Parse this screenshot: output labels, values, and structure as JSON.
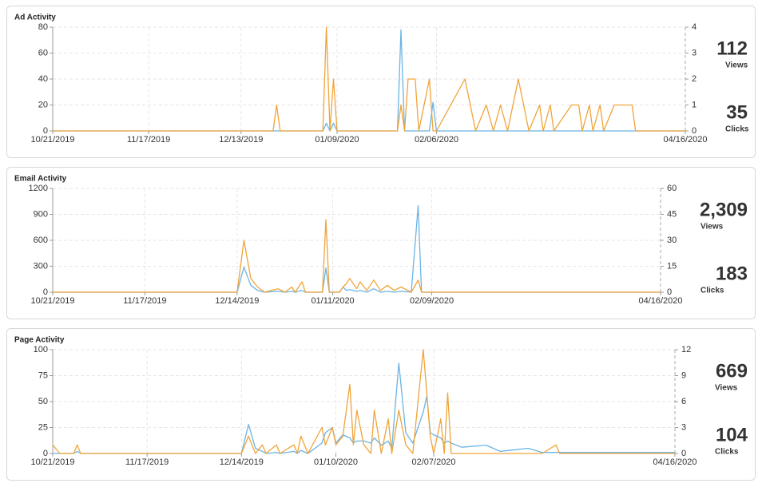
{
  "chart_data": [
    {
      "type": "line",
      "title": "Ad Activity",
      "x": [
        "10/21/2019",
        "12/22/2019",
        "12/23/2019",
        "12/24/2019",
        "01/05/2020",
        "01/06/2020",
        "01/07/2020",
        "01/08/2020",
        "01/09/2020",
        "01/26/2020",
        "01/27/2020",
        "01/28/2020",
        "01/29/2020",
        "01/31/2020",
        "02/01/2020",
        "02/04/2020",
        "02/05/2020",
        "02/06/2020",
        "02/14/2020",
        "02/17/2020",
        "02/20/2020",
        "02/22/2020",
        "02/24/2020",
        "02/26/2020",
        "02/29/2020",
        "03/03/2020",
        "03/06/2020",
        "03/07/2020",
        "03/09/2020",
        "03/10/2020",
        "03/15/2020",
        "03/17/2020",
        "03/18/2020",
        "03/20/2020",
        "03/21/2020",
        "03/23/2020",
        "03/24/2020",
        "03/27/2020",
        "04/01/2020",
        "04/02/2020",
        "04/16/2020"
      ],
      "xlim": [
        "10/21/2019",
        "04/16/2020"
      ],
      "xticks": [
        "10/21/2019",
        "11/17/2019",
        "12/13/2019",
        "01/09/2020",
        "02/06/2020",
        "04/16/2020"
      ],
      "ylim": [
        0,
        80
      ],
      "yticks": [
        0,
        20,
        40,
        60,
        80
      ],
      "y2lim": [
        0,
        4
      ],
      "y2ticks": [
        0,
        1,
        2,
        3,
        4
      ],
      "grid": true,
      "series": [
        {
          "name": "Views",
          "color": "#6cb4e4",
          "total": 112,
          "values": [
            0,
            0,
            0,
            0,
            0,
            6,
            0,
            6,
            0,
            0,
            78,
            0,
            0,
            0,
            0,
            0,
            22,
            0,
            0,
            0,
            0,
            0,
            0,
            0,
            0,
            0,
            0,
            0,
            0,
            0,
            0,
            0,
            0,
            0,
            0,
            0,
            0,
            0,
            0,
            0,
            0
          ]
        },
        {
          "name": "Clicks",
          "color": "#f0a43a",
          "axis": "y2",
          "total": 35,
          "values": [
            0,
            0,
            1,
            0,
            0,
            4,
            0,
            2,
            0,
            0,
            1,
            0,
            2,
            2,
            0,
            2,
            0,
            0,
            2,
            0,
            1,
            0,
            1,
            0,
            2,
            0,
            1,
            0,
            1,
            0,
            1,
            1,
            0,
            1,
            0,
            1,
            0,
            1,
            1,
            0,
            0
          ]
        }
      ]
    },
    {
      "type": "line",
      "title": "Email Activity",
      "x": [
        "10/21/2019",
        "12/14/2019",
        "12/16/2019",
        "12/18/2019",
        "12/20/2019",
        "12/22/2019",
        "12/26/2019",
        "12/28/2019",
        "12/30/2019",
        "12/31/2019",
        "01/02/2020",
        "01/03/2020",
        "01/08/2020",
        "01/09/2020",
        "01/10/2020",
        "01/13/2020",
        "01/14/2020",
        "01/15/2020",
        "01/16/2020",
        "01/18/2020",
        "01/19/2020",
        "01/21/2020",
        "01/23/2020",
        "01/25/2020",
        "01/27/2020",
        "01/29/2020",
        "01/31/2020",
        "02/03/2020",
        "02/05/2020",
        "02/06/2020",
        "04/16/2020"
      ],
      "xlim": [
        "10/21/2019",
        "04/16/2020"
      ],
      "xticks": [
        "10/21/2019",
        "11/17/2019",
        "12/14/2019",
        "01/11/2020",
        "02/09/2020",
        "04/16/2020"
      ],
      "ylim": [
        0,
        1200
      ],
      "yticks": [
        0,
        300,
        600,
        900,
        1200
      ],
      "y2lim": [
        0,
        60
      ],
      "y2ticks": [
        0,
        15,
        30,
        45,
        60
      ],
      "grid": true,
      "series": [
        {
          "name": "Views",
          "color": "#6cb4e4",
          "total": {
            "value": 2309,
            "label": "2,309"
          },
          "values": [
            0,
            0,
            290,
            80,
            20,
            0,
            10,
            0,
            10,
            0,
            20,
            0,
            0,
            280,
            0,
            0,
            60,
            20,
            30,
            10,
            20,
            0,
            40,
            0,
            10,
            0,
            10,
            0,
            1000,
            0,
            0
          ]
        },
        {
          "name": "Clicks",
          "color": "#f0a43a",
          "axis": "y2",
          "total": 183,
          "values": [
            0,
            0,
            30,
            8,
            3,
            0,
            2,
            0,
            3,
            0,
            6,
            0,
            0,
            42,
            0,
            0,
            3,
            5,
            8,
            2,
            6,
            1,
            7,
            1,
            4,
            1,
            3,
            0,
            7,
            0,
            0
          ]
        }
      ]
    },
    {
      "type": "line",
      "title": "Page Activity",
      "x": [
        "10/21/2019",
        "10/23/2019",
        "10/27/2019",
        "10/28/2019",
        "10/29/2019",
        "12/14/2019",
        "12/16/2019",
        "12/18/2019",
        "12/20/2019",
        "12/21/2019",
        "12/24/2019",
        "12/25/2019",
        "12/29/2019",
        "12/30/2019",
        "12/31/2019",
        "01/02/2020",
        "01/06/2020",
        "01/07/2020",
        "01/09/2020",
        "01/10/2020",
        "01/12/2020",
        "01/14/2020",
        "01/15/2020",
        "01/16/2020",
        "01/18/2020",
        "01/20/2020",
        "01/21/2020",
        "01/23/2020",
        "01/25/2020",
        "01/26/2020",
        "01/28/2020",
        "01/30/2020",
        "02/01/2020",
        "02/04/2020",
        "02/05/2020",
        "02/06/2020",
        "02/07/2020",
        "02/09/2020",
        "02/10/2020",
        "02/11/2020",
        "02/12/2020",
        "02/15/2020",
        "02/22/2020",
        "02/26/2020",
        "03/05/2020",
        "03/09/2020",
        "03/13/2020",
        "03/14/2020",
        "04/16/2020"
      ],
      "xlim": [
        "10/21/2019",
        "04/16/2020"
      ],
      "xticks": [
        "10/21/2019",
        "11/17/2019",
        "12/14/2019",
        "01/10/2020",
        "02/07/2020",
        "04/16/2020"
      ],
      "ylim": [
        0,
        100
      ],
      "yticks": [
        0,
        25,
        50,
        75,
        100
      ],
      "y2lim": [
        0,
        12
      ],
      "y2ticks": [
        0,
        3,
        6,
        9,
        12
      ],
      "grid": true,
      "series": [
        {
          "name": "Views",
          "color": "#6cb4e4",
          "total": 669,
          "values": [
            0,
            0,
            0,
            2,
            0,
            0,
            28,
            5,
            2,
            0,
            1,
            0,
            2,
            0,
            3,
            0,
            10,
            20,
            25,
            10,
            18,
            15,
            10,
            12,
            12,
            10,
            15,
            8,
            12,
            5,
            87,
            20,
            10,
            40,
            55,
            20,
            18,
            15,
            10,
            12,
            10,
            6,
            8,
            2,
            5,
            1,
            1,
            1,
            1
          ]
        },
        {
          "name": "Clicks",
          "color": "#f0a43a",
          "axis": "y2",
          "total": 104,
          "values": [
            1,
            0,
            0,
            1,
            0,
            0,
            2,
            0,
            1,
            0,
            1,
            0,
            1,
            0,
            2,
            0,
            3,
            1,
            3,
            1,
            2,
            8,
            1,
            5,
            1,
            0,
            5,
            0,
            4,
            0,
            5,
            1,
            0,
            12,
            7,
            2,
            0,
            4,
            0,
            7,
            0,
            0,
            0,
            0,
            0,
            0,
            1,
            0,
            0
          ]
        }
      ]
    }
  ]
}
